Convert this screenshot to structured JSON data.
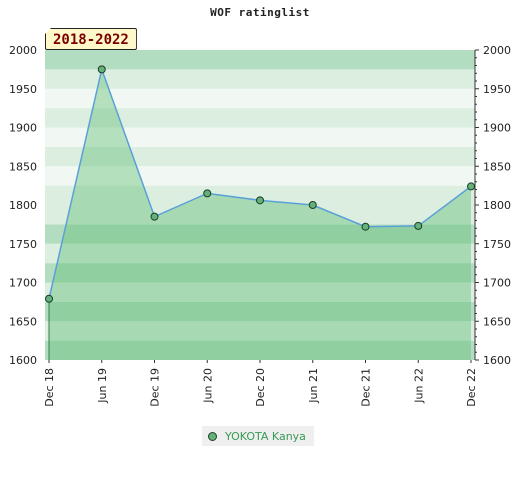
{
  "chart_data": {
    "type": "area",
    "title": "WOF ratinglist",
    "period_label": "2018-2022",
    "x": [
      "Dec 18",
      "Jun 19",
      "Dec 19",
      "Jun 20",
      "Dec 20",
      "Jun 21",
      "Dec 21",
      "Jun 22",
      "Dec 22"
    ],
    "series": [
      {
        "name": "YOKOTA Kanya",
        "values": [
          1679,
          1975,
          1785,
          1815,
          1806,
          1800,
          1772,
          1773,
          1824
        ]
      }
    ],
    "ylim": [
      1600,
      2000
    ],
    "yticks": [
      1600,
      1650,
      1700,
      1750,
      1800,
      1850,
      1900,
      1950,
      2000
    ],
    "grid": true,
    "legend_position": "bottom-center",
    "colors": {
      "line": "#5aa0d8",
      "fill": "#5fbf74",
      "point": "#63b27a",
      "band_light": "#f1f8f3",
      "band_mid": "#dbeee0",
      "band_dark": "#b3ddc0",
      "legend_text": "#3a9a55"
    }
  }
}
